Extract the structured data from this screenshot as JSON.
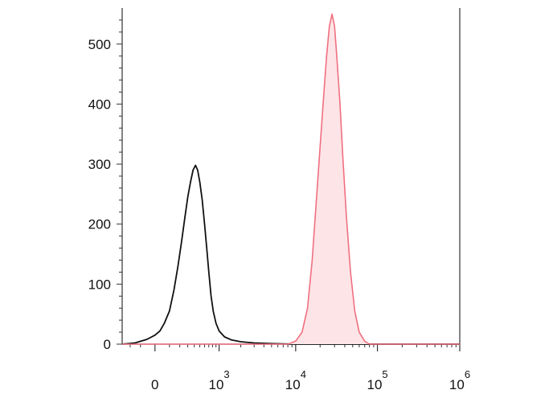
{
  "chart_data": {
    "type": "area",
    "title": "",
    "xlabel": "",
    "ylabel": "",
    "x_scale": "biexponential",
    "xlim": [
      -300,
      1000000
    ],
    "ylim": [
      0,
      560
    ],
    "yticks": [
      {
        "value": 0,
        "label": "0"
      },
      {
        "value": 100,
        "label": "100"
      },
      {
        "value": 200,
        "label": "200"
      },
      {
        "value": 300,
        "label": "300"
      },
      {
        "value": 400,
        "label": "400"
      },
      {
        "value": 500,
        "label": "500"
      }
    ],
    "xticks": [
      {
        "value": 0,
        "base": "0",
        "exp": ""
      },
      {
        "value": 1000,
        "base": "10",
        "exp": "3"
      },
      {
        "value": 10000,
        "base": "10",
        "exp": "4"
      },
      {
        "value": 100000,
        "base": "10",
        "exp": "5"
      },
      {
        "value": 1000000,
        "base": "10",
        "exp": "6"
      }
    ],
    "grid": false,
    "legend": "none",
    "series": [
      {
        "style": "outline",
        "color": "#111111",
        "points": [
          [
            -300,
            0
          ],
          [
            -150,
            2
          ],
          [
            -50,
            8
          ],
          [
            0,
            15
          ],
          [
            30,
            22
          ],
          [
            60,
            35
          ],
          [
            100,
            55
          ],
          [
            140,
            90
          ],
          [
            180,
            130
          ],
          [
            220,
            170
          ],
          [
            260,
            210
          ],
          [
            300,
            245
          ],
          [
            340,
            270
          ],
          [
            380,
            290
          ],
          [
            420,
            298
          ],
          [
            460,
            290
          ],
          [
            500,
            270
          ],
          [
            550,
            240
          ],
          [
            600,
            200
          ],
          [
            650,
            160
          ],
          [
            700,
            120
          ],
          [
            760,
            80
          ],
          [
            820,
            55
          ],
          [
            900,
            35
          ],
          [
            1000,
            22
          ],
          [
            1200,
            12
          ],
          [
            1500,
            7
          ],
          [
            2000,
            4
          ],
          [
            3000,
            2
          ],
          [
            5000,
            1
          ],
          [
            10000,
            0
          ],
          [
            1000000,
            0
          ]
        ]
      },
      {
        "style": "filled",
        "color": "#f07080",
        "fill": "#fde4e7",
        "points": [
          [
            -300,
            0
          ],
          [
            8000,
            0
          ],
          [
            10000,
            5
          ],
          [
            12000,
            20
          ],
          [
            14000,
            60
          ],
          [
            16000,
            140
          ],
          [
            18000,
            240
          ],
          [
            20000,
            330
          ],
          [
            22000,
            410
          ],
          [
            24000,
            480
          ],
          [
            26000,
            530
          ],
          [
            28000,
            550
          ],
          [
            30000,
            530
          ],
          [
            32000,
            480
          ],
          [
            35000,
            400
          ],
          [
            38000,
            310
          ],
          [
            42000,
            210
          ],
          [
            47000,
            120
          ],
          [
            53000,
            55
          ],
          [
            60000,
            20
          ],
          [
            70000,
            5
          ],
          [
            80000,
            0
          ],
          [
            1000000,
            0
          ]
        ]
      }
    ]
  }
}
